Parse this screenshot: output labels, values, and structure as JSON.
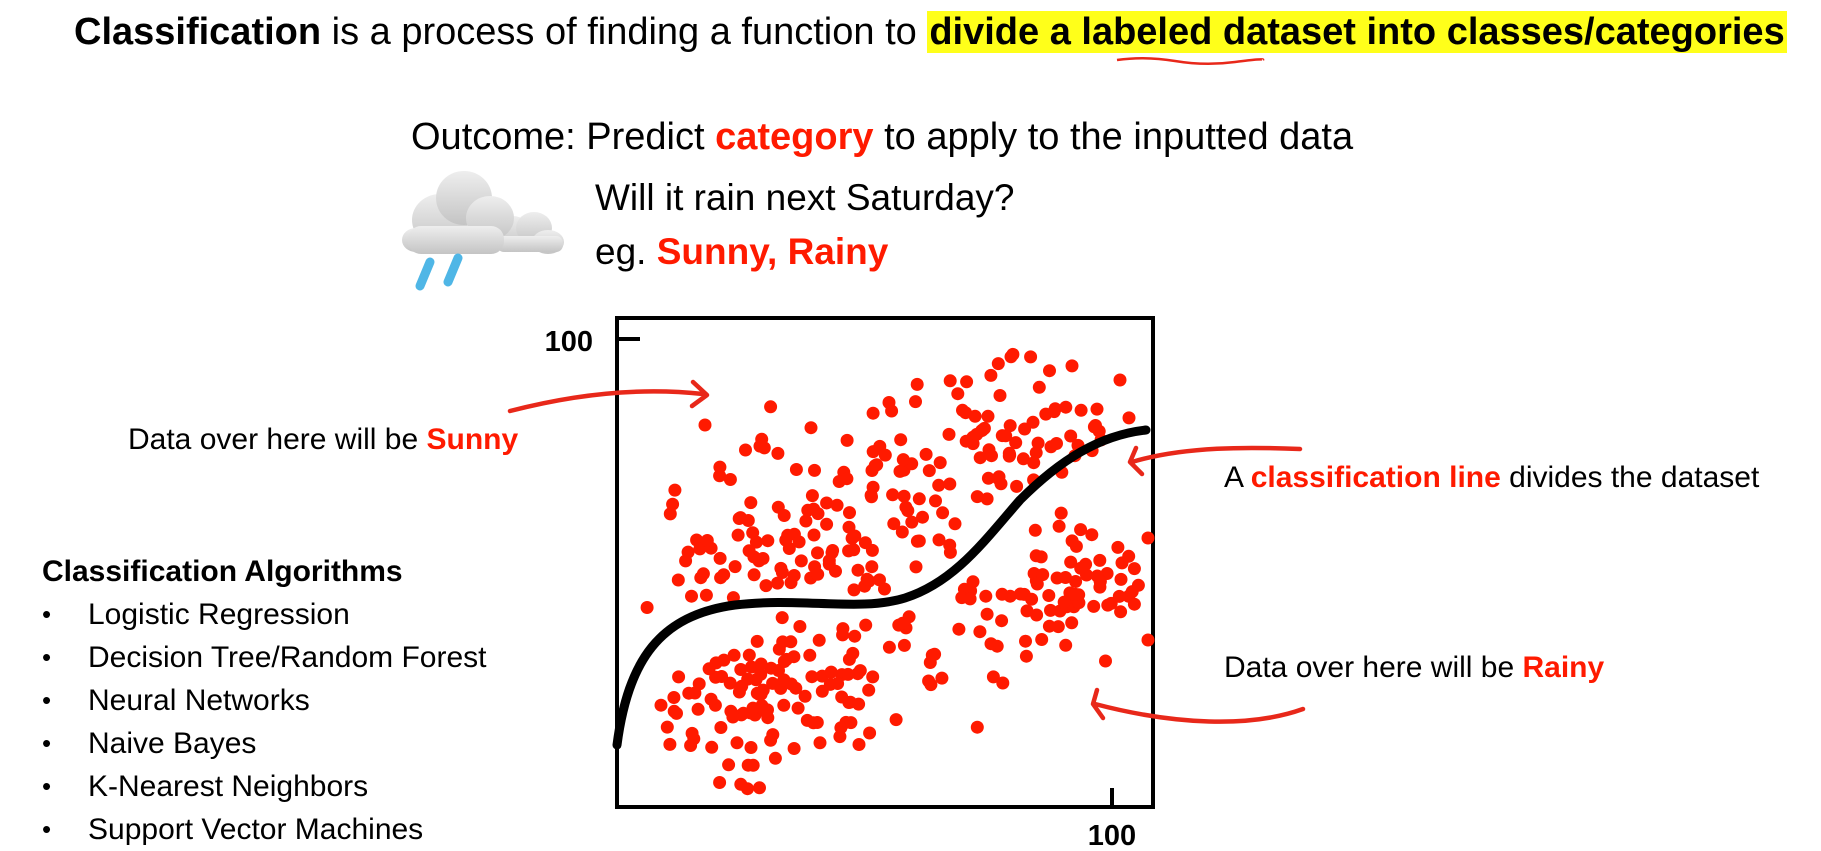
{
  "title": {
    "term": "Classification",
    "middle": " is a process of finding a function to ",
    "highlight": "divide a labeled dataset into classes/categories"
  },
  "outcome": {
    "prefix": "Outcome: Predict  ",
    "emphasis": "category",
    "suffix": " to apply to the inputted data"
  },
  "example": {
    "question": "Will it rain next Saturday?",
    "prefix": "eg. ",
    "answer": "Sunny, Rainy",
    "icon": "rain-cloud-icon"
  },
  "annotations": {
    "sunny_prefix": "Data over here will be ",
    "sunny_label": "Sunny",
    "rainy_prefix": "Data over here will be ",
    "rainy_label": "Rainy",
    "line_prefix": "A ",
    "line_label": "classification line",
    "line_suffix": " divides the dataset"
  },
  "algorithms": {
    "title": "Classification Algorithms",
    "items": [
      "Logistic Regression",
      "Decision Tree/Random Forest",
      "Neural Networks",
      "Naive Bayes",
      "K-Nearest Neighbors",
      "Support Vector Machines"
    ]
  },
  "plot": {
    "y_tick": "100",
    "x_tick": "100"
  },
  "colors": {
    "accent": "#ff1a00",
    "highlight": "#ffff1a",
    "points": "#ff1a00",
    "line": "#000000"
  }
}
